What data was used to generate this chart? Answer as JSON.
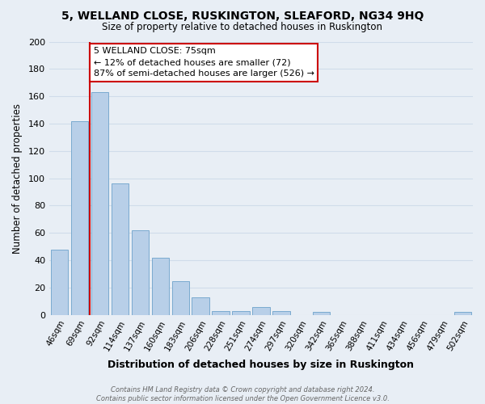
{
  "title": "5, WELLAND CLOSE, RUSKINGTON, SLEAFORD, NG34 9HQ",
  "subtitle": "Size of property relative to detached houses in Ruskington",
  "xlabel": "Distribution of detached houses by size in Ruskington",
  "ylabel": "Number of detached properties",
  "bar_labels": [
    "46sqm",
    "69sqm",
    "92sqm",
    "114sqm",
    "137sqm",
    "160sqm",
    "183sqm",
    "206sqm",
    "228sqm",
    "251sqm",
    "274sqm",
    "297sqm",
    "320sqm",
    "342sqm",
    "365sqm",
    "388sqm",
    "411sqm",
    "434sqm",
    "456sqm",
    "479sqm",
    "502sqm"
  ],
  "bar_values": [
    48,
    142,
    163,
    96,
    62,
    42,
    25,
    13,
    3,
    3,
    6,
    3,
    0,
    2,
    0,
    0,
    0,
    0,
    0,
    0,
    2
  ],
  "bar_color": "#b8cfe8",
  "bar_edge_color": "#7aaad0",
  "grid_color": "#d0dcea",
  "bg_color": "#e8eef5",
  "ylim": [
    0,
    200
  ],
  "yticks": [
    0,
    20,
    40,
    60,
    80,
    100,
    120,
    140,
    160,
    180,
    200
  ],
  "property_line_color": "#cc0000",
  "annotation_text": "5 WELLAND CLOSE: 75sqm\n← 12% of detached houses are smaller (72)\n87% of semi-detached houses are larger (526) →",
  "annotation_box_color": "#ffffff",
  "annotation_box_edge": "#cc0000",
  "footer_line1": "Contains HM Land Registry data © Crown copyright and database right 2024.",
  "footer_line2": "Contains public sector information licensed under the Open Government Licence v3.0."
}
